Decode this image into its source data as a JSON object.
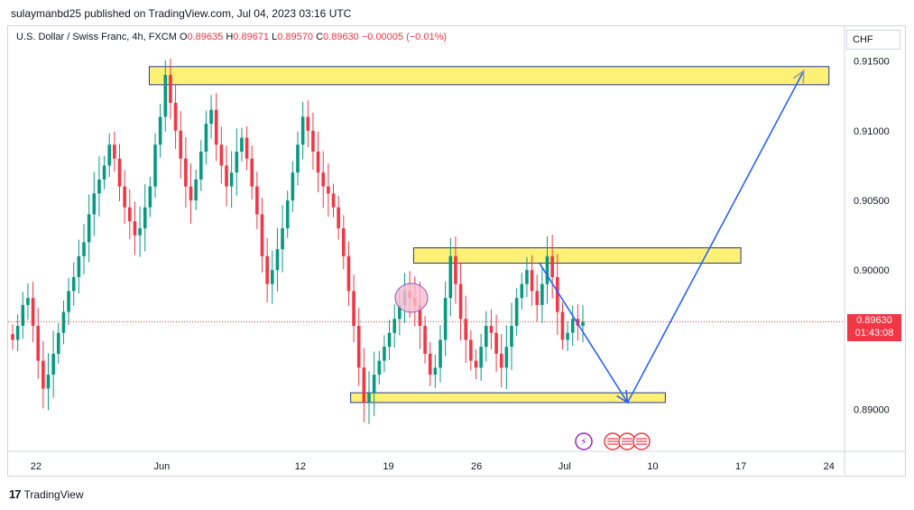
{
  "header": {
    "published_line": "sulaymanbd25 published on TradingView.com, Jul 04, 2023 03:16 UTC"
  },
  "legend": {
    "symbol": "U.S. Dollar / Swiss Franc, 4h, FXCM",
    "o_label": "O",
    "o_value": "0.89635",
    "h_label": "H",
    "h_value": "0.89671",
    "l_label": "L",
    "l_value": "0.89570",
    "c_label": "C",
    "c_value": "0.89630",
    "change": "−0.00005 (−0.01%)"
  },
  "price_axis": {
    "currency": "CHF",
    "last_price": "0.89630",
    "countdown": "01:43:08"
  },
  "footer": {
    "brand": "TradingView"
  },
  "colors": {
    "up": "#089981",
    "down": "#f23645",
    "zone_fill": "#fff176",
    "zone_border": "#1e3a8a",
    "arrow": "#2962ff"
  },
  "chart_data": {
    "type": "candlestick",
    "y_ticks": [
      "0.91500",
      "0.91000",
      "0.90500",
      "0.90000",
      "0.89000"
    ],
    "x_ticks": [
      "22",
      "Jun",
      "12",
      "19",
      "26",
      "Jul",
      "10",
      "17",
      "24"
    ],
    "ylim": [
      0.887,
      0.9175
    ],
    "last_price": 0.8963,
    "zones": [
      {
        "start": "May 31",
        "end": "Jul 24",
        "top": 0.9146,
        "bottom": 0.9133
      },
      {
        "start": "Jun 21",
        "end": "Jul 17",
        "top": 0.9016,
        "bottom": 0.9005
      },
      {
        "start": "Jun 16",
        "end": "Jul 11",
        "top": 0.8912,
        "bottom": 0.8905
      }
    ],
    "projection_path": [
      {
        "date": "Jul 01",
        "price": 0.9005
      },
      {
        "date": "Jul 08",
        "price": 0.8905
      },
      {
        "date": "Jul 22",
        "price": 0.9143
      }
    ],
    "series": [
      {
        "values": [
          0.895,
          0.896,
          0.8975,
          0.898,
          0.896,
          0.8935,
          0.8915,
          0.8925,
          0.894,
          0.8955,
          0.897,
          0.8985,
          0.8995,
          0.901,
          0.902,
          0.904,
          0.9055,
          0.9065,
          0.9075,
          0.909,
          0.908,
          0.906,
          0.9045,
          0.9035,
          0.9025,
          0.903,
          0.9045,
          0.906,
          0.909,
          0.911,
          0.914,
          0.912,
          0.91,
          0.908,
          0.906,
          0.905,
          0.9065,
          0.9085,
          0.9105,
          0.9115,
          0.909,
          0.9075,
          0.906,
          0.907,
          0.9085,
          0.9095,
          0.908,
          0.906,
          0.904,
          0.901,
          0.899,
          0.9,
          0.9015,
          0.903,
          0.905,
          0.907,
          0.909,
          0.911,
          0.91,
          0.9085,
          0.907,
          0.906,
          0.9055,
          0.9045,
          0.903,
          0.901,
          0.8985,
          0.896,
          0.893,
          0.8905,
          0.8912,
          0.8925,
          0.8935,
          0.8945,
          0.8955,
          0.8965,
          0.8975,
          0.8985,
          0.898,
          0.8975,
          0.896,
          0.894,
          0.8925,
          0.893,
          0.895,
          0.898,
          0.901,
          0.899,
          0.8965,
          0.895,
          0.8935,
          0.893,
          0.8945,
          0.896,
          0.8955,
          0.894,
          0.893,
          0.8945,
          0.896,
          0.898,
          0.899,
          0.9,
          0.8985,
          0.8975,
          0.899,
          0.901,
          0.8995,
          0.897,
          0.895,
          0.8955,
          0.8965,
          0.896,
          0.8963
        ]
      }
    ]
  }
}
